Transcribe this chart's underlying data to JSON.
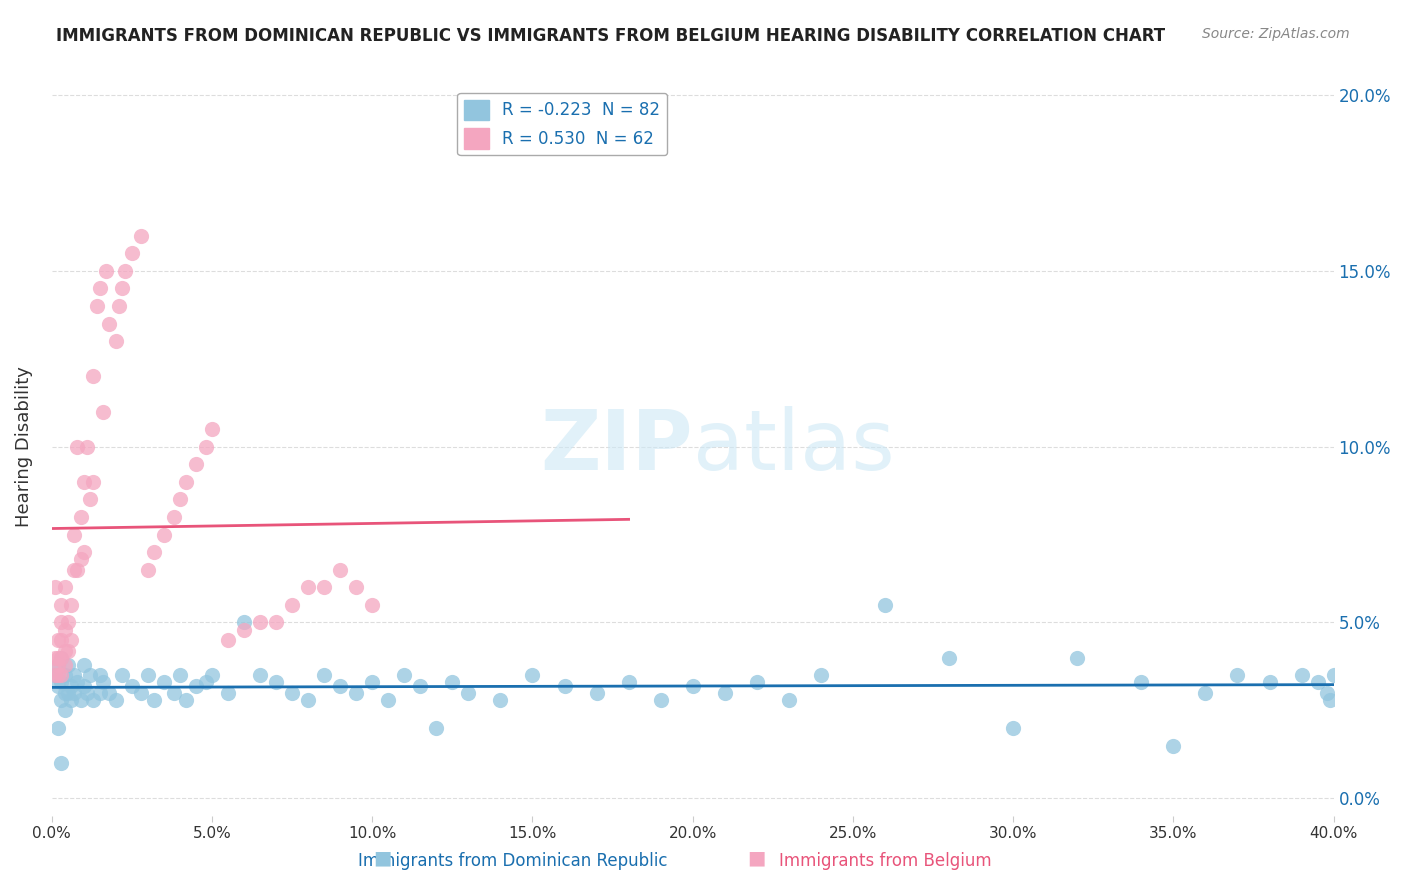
{
  "title": "IMMIGRANTS FROM DOMINICAN REPUBLIC VS IMMIGRANTS FROM BELGIUM HEARING DISABILITY CORRELATION CHART",
  "source": "Source: ZipAtlas.com",
  "xlabel_blue": "Immigrants from Dominican Republic",
  "xlabel_pink": "Immigrants from Belgium",
  "ylabel": "Hearing Disability",
  "xlim": [
    0.0,
    0.4
  ],
  "ylim": [
    -0.005,
    0.205
  ],
  "xticks": [
    0.0,
    0.05,
    0.1,
    0.15,
    0.2,
    0.25,
    0.3,
    0.35,
    0.4
  ],
  "yticks": [
    0.0,
    0.05,
    0.1,
    0.15,
    0.2
  ],
  "blue_color": "#92c5de",
  "pink_color": "#f4a6c0",
  "blue_line_color": "#1a6faf",
  "pink_line_color": "#e8547a",
  "legend_blue_R": "-0.223",
  "legend_blue_N": "82",
  "legend_pink_R": "0.530",
  "legend_pink_N": "62",
  "watermark_zip": "ZIP",
  "watermark_atlas": "atlas",
  "blue_scatter_x": [
    0.001,
    0.002,
    0.002,
    0.003,
    0.003,
    0.003,
    0.004,
    0.004,
    0.004,
    0.005,
    0.005,
    0.006,
    0.006,
    0.007,
    0.007,
    0.008,
    0.009,
    0.01,
    0.01,
    0.011,
    0.012,
    0.013,
    0.015,
    0.015,
    0.016,
    0.018,
    0.02,
    0.022,
    0.025,
    0.028,
    0.03,
    0.032,
    0.035,
    0.038,
    0.04,
    0.042,
    0.045,
    0.048,
    0.05,
    0.055,
    0.06,
    0.065,
    0.07,
    0.075,
    0.08,
    0.085,
    0.09,
    0.095,
    0.1,
    0.105,
    0.11,
    0.115,
    0.12,
    0.125,
    0.13,
    0.14,
    0.15,
    0.16,
    0.17,
    0.18,
    0.19,
    0.2,
    0.21,
    0.22,
    0.23,
    0.24,
    0.26,
    0.28,
    0.3,
    0.32,
    0.34,
    0.35,
    0.36,
    0.37,
    0.38,
    0.39,
    0.395,
    0.398,
    0.399,
    0.4,
    0.002,
    0.003
  ],
  "blue_scatter_y": [
    0.035,
    0.038,
    0.032,
    0.04,
    0.033,
    0.028,
    0.035,
    0.03,
    0.025,
    0.038,
    0.03,
    0.032,
    0.028,
    0.035,
    0.03,
    0.033,
    0.028,
    0.032,
    0.038,
    0.03,
    0.035,
    0.028,
    0.03,
    0.035,
    0.033,
    0.03,
    0.028,
    0.035,
    0.032,
    0.03,
    0.035,
    0.028,
    0.033,
    0.03,
    0.035,
    0.028,
    0.032,
    0.033,
    0.035,
    0.03,
    0.05,
    0.035,
    0.033,
    0.03,
    0.028,
    0.035,
    0.032,
    0.03,
    0.033,
    0.028,
    0.035,
    0.032,
    0.02,
    0.033,
    0.03,
    0.028,
    0.035,
    0.032,
    0.03,
    0.033,
    0.028,
    0.032,
    0.03,
    0.033,
    0.028,
    0.035,
    0.055,
    0.04,
    0.02,
    0.04,
    0.033,
    0.015,
    0.03,
    0.035,
    0.033,
    0.035,
    0.033,
    0.03,
    0.028,
    0.035,
    0.02,
    0.01
  ],
  "pink_scatter_x": [
    0.001,
    0.001,
    0.001,
    0.002,
    0.002,
    0.002,
    0.002,
    0.003,
    0.003,
    0.003,
    0.003,
    0.003,
    0.004,
    0.004,
    0.004,
    0.004,
    0.005,
    0.005,
    0.006,
    0.006,
    0.007,
    0.007,
    0.008,
    0.008,
    0.009,
    0.009,
    0.01,
    0.01,
    0.011,
    0.012,
    0.013,
    0.013,
    0.014,
    0.015,
    0.016,
    0.017,
    0.018,
    0.02,
    0.021,
    0.022,
    0.023,
    0.025,
    0.028,
    0.03,
    0.032,
    0.035,
    0.038,
    0.04,
    0.042,
    0.045,
    0.048,
    0.05,
    0.055,
    0.06,
    0.065,
    0.07,
    0.075,
    0.08,
    0.085,
    0.09,
    0.095,
    0.1
  ],
  "pink_scatter_y": [
    0.035,
    0.04,
    0.06,
    0.035,
    0.038,
    0.04,
    0.045,
    0.035,
    0.04,
    0.045,
    0.05,
    0.055,
    0.038,
    0.042,
    0.048,
    0.06,
    0.042,
    0.05,
    0.045,
    0.055,
    0.065,
    0.075,
    0.065,
    0.1,
    0.068,
    0.08,
    0.07,
    0.09,
    0.1,
    0.085,
    0.09,
    0.12,
    0.14,
    0.145,
    0.11,
    0.15,
    0.135,
    0.13,
    0.14,
    0.145,
    0.15,
    0.155,
    0.16,
    0.065,
    0.07,
    0.075,
    0.08,
    0.085,
    0.09,
    0.095,
    0.1,
    0.105,
    0.045,
    0.048,
    0.05,
    0.05,
    0.055,
    0.06,
    0.06,
    0.065,
    0.06,
    0.055
  ]
}
